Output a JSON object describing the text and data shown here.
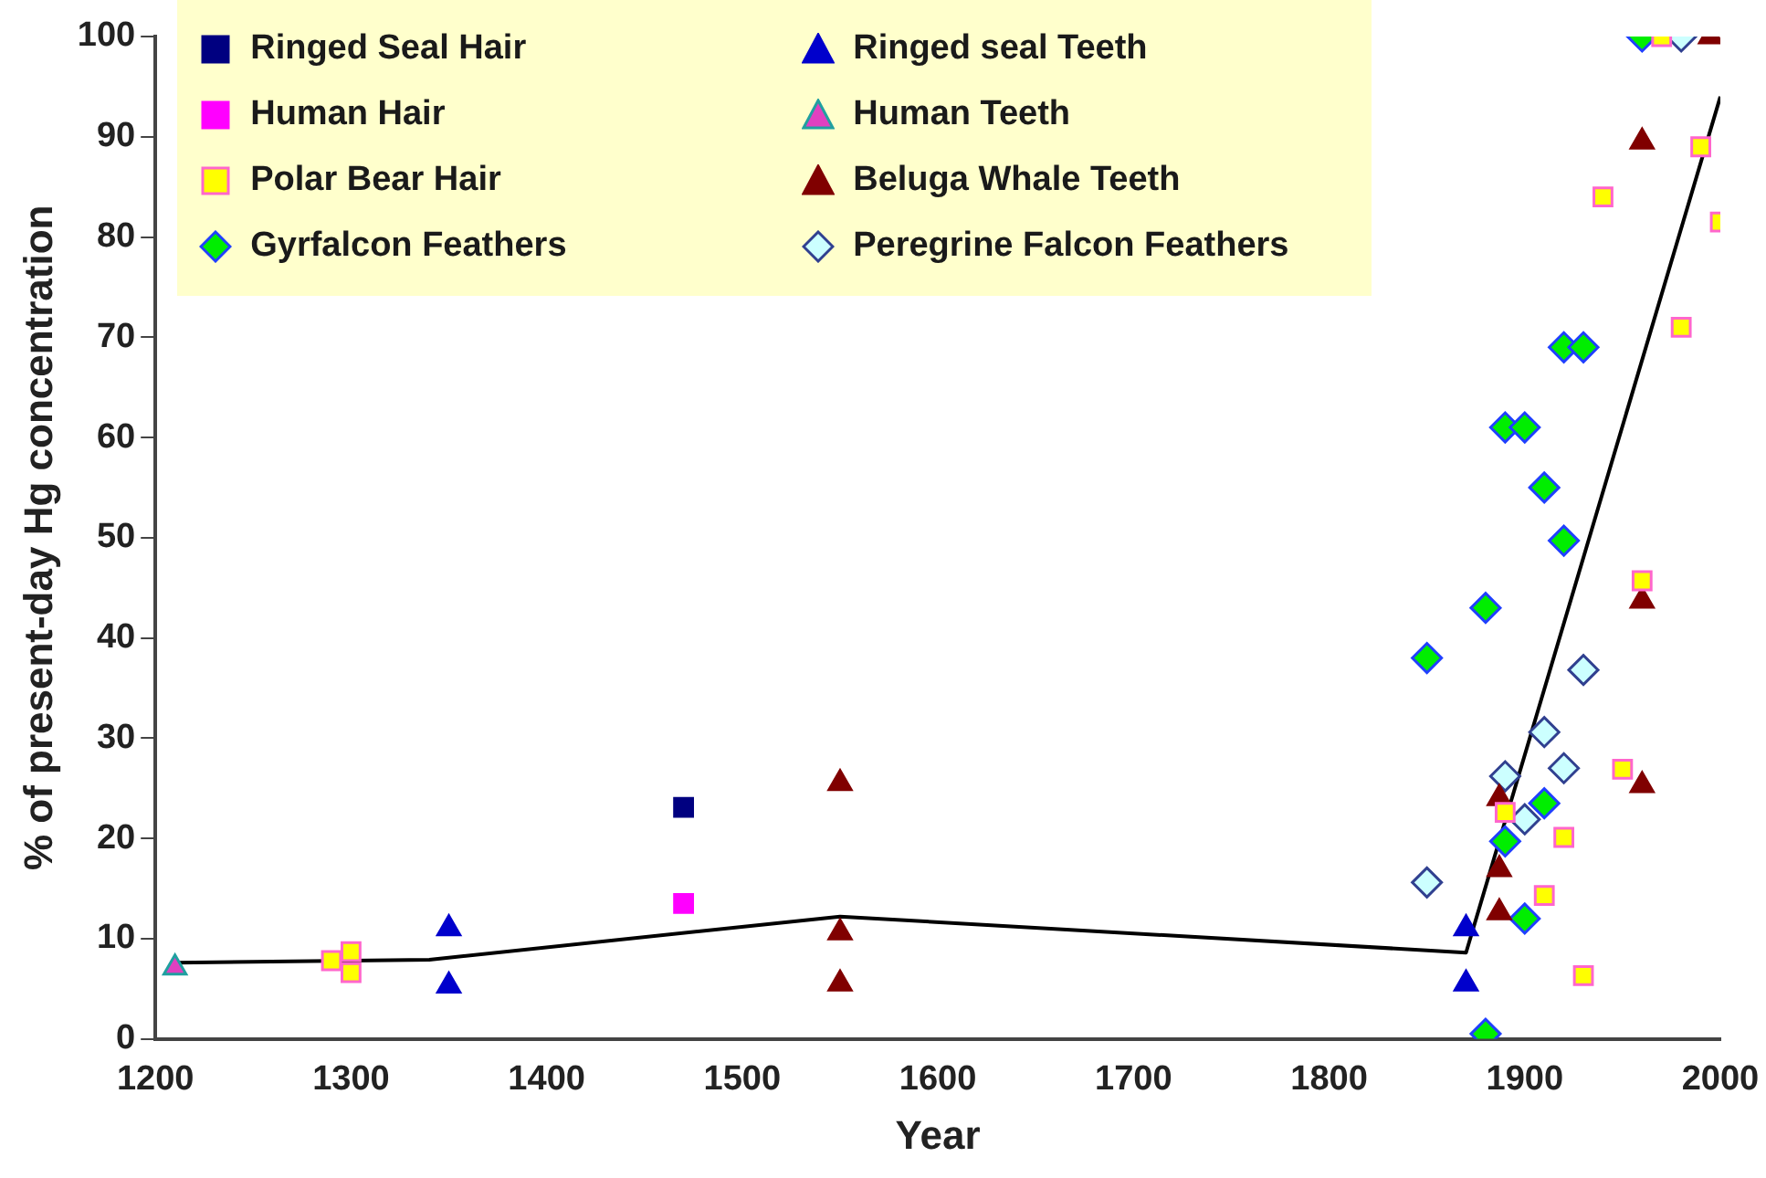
{
  "chart_data": {
    "type": "scatter",
    "xlabel": "Year",
    "ylabel": "% of present-day Hg concentration",
    "xlim": [
      1200,
      2000
    ],
    "xticks": [
      1200,
      1300,
      1400,
      1500,
      1600,
      1700,
      1800,
      1900,
      2000
    ],
    "ylim": [
      0,
      100
    ],
    "yticks": [
      0,
      10,
      20,
      30,
      40,
      50,
      60,
      70,
      80,
      90,
      100
    ],
    "grid": false,
    "legend": "top left",
    "series": [
      {
        "name": "Ringed Seal Hair",
        "color": "#000080",
        "marker": "square",
        "x": [
          1470
        ],
        "values": [
          23.1
        ]
      },
      {
        "name": "Ringed seal Teeth",
        "color": "#0000cc",
        "marker": "triangle",
        "x": [
          1350,
          1350,
          1870,
          1870
        ],
        "values": [
          11,
          5.3,
          11,
          5.5
        ]
      },
      {
        "name": "Human Hair",
        "color": "#ff00ff",
        "marker": "square",
        "x": [
          1470
        ],
        "values": [
          13.5
        ]
      },
      {
        "name": "Human Teeth",
        "color": "#e040c0",
        "marker": "triangle",
        "x": [
          1210
        ],
        "values": [
          7.1
        ]
      },
      {
        "name": "Polar Bear Hair",
        "color": "#ffff00",
        "marker": "square",
        "x": [
          1290,
          1300,
          1300,
          1890,
          1910,
          1920,
          1930,
          1950,
          1960,
          1940,
          1980,
          1990,
          2000,
          1970
        ],
        "values": [
          7.8,
          8.7,
          6.6,
          22.6,
          14.3,
          20.1,
          6.3,
          26.9,
          45.7,
          84,
          71,
          89,
          81.5,
          100
        ]
      },
      {
        "name": "Beluga Whale Teeth",
        "color": "#800000",
        "marker": "triangle",
        "x": [
          1550,
          1550,
          1550,
          1887,
          1887,
          1887,
          1960,
          1960,
          1960,
          1995
        ],
        "values": [
          25.5,
          10.6,
          5.5,
          24,
          16.9,
          12.6,
          25.3,
          43.7,
          89.5,
          100
        ]
      },
      {
        "name": "Gyrfalcon Feathers",
        "color": "#00ee00",
        "marker": "diamond",
        "x": [
          1850,
          1880,
          1880,
          1890,
          1890,
          1900,
          1900,
          1910,
          1910,
          1920,
          1920,
          1930,
          1960
        ],
        "values": [
          38,
          43,
          0.5,
          19.7,
          61,
          12,
          61,
          23.5,
          55,
          49.7,
          69,
          69,
          100
        ]
      },
      {
        "name": "Peregrine Falcon Feathers",
        "color": "#ccffff",
        "marker": "diamond",
        "x": [
          1850,
          1890,
          1900,
          1910,
          1920,
          1930,
          1980
        ],
        "values": [
          15.6,
          26.2,
          21.9,
          30.6,
          27,
          36.8,
          100
        ]
      },
      {
        "type": "line",
        "color": "#000000",
        "marker": "none",
        "x": [
          1210,
          1340,
          1550,
          1870,
          2000
        ],
        "values": [
          7.6,
          7.9,
          12.2,
          8.6,
          94
        ]
      }
    ]
  }
}
